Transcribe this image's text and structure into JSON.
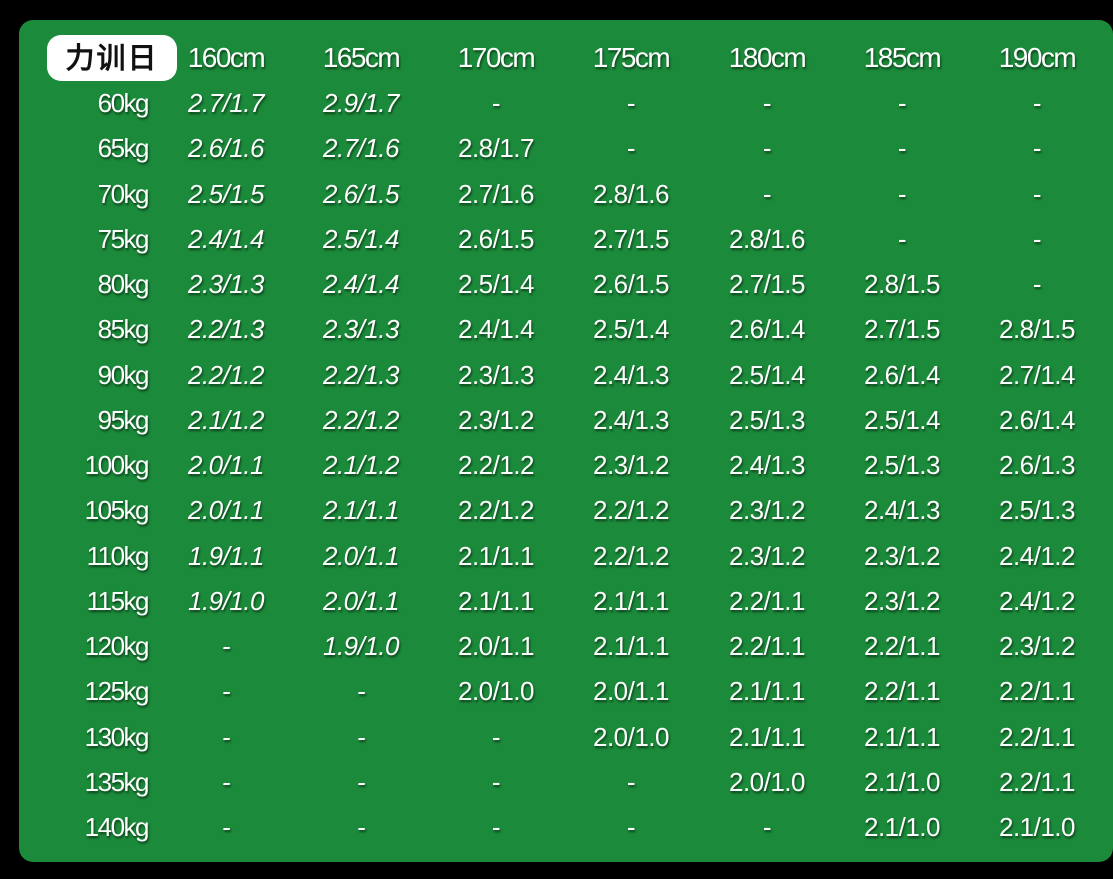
{
  "colors": {
    "background": "#000000",
    "panel": "#1b8a3a",
    "badge_bg": "#ffffff",
    "badge_text": "#111111",
    "text": "#ffffff"
  },
  "table": {
    "badge": "力训日",
    "columns": [
      "160cm",
      "165cm",
      "170cm",
      "175cm",
      "180cm",
      "185cm",
      "190cm"
    ],
    "rows": [
      {
        "label": "60kg",
        "cells": [
          "2.7/1.7",
          "2.9/1.7",
          "-",
          "-",
          "-",
          "-",
          "-"
        ]
      },
      {
        "label": "65kg",
        "cells": [
          "2.6/1.6",
          "2.7/1.6",
          "2.8/1.7",
          "-",
          "-",
          "-",
          "-"
        ]
      },
      {
        "label": "70kg",
        "cells": [
          "2.5/1.5",
          "2.6/1.5",
          "2.7/1.6",
          "2.8/1.6",
          "-",
          "-",
          "-"
        ]
      },
      {
        "label": "75kg",
        "cells": [
          "2.4/1.4",
          "2.5/1.4",
          "2.6/1.5",
          "2.7/1.5",
          "2.8/1.6",
          "-",
          "-"
        ]
      },
      {
        "label": "80kg",
        "cells": [
          "2.3/1.3",
          "2.4/1.4",
          "2.5/1.4",
          "2.6/1.5",
          "2.7/1.5",
          "2.8/1.5",
          "-"
        ]
      },
      {
        "label": "85kg",
        "cells": [
          "2.2/1.3",
          "2.3/1.3",
          "2.4/1.4",
          "2.5/1.4",
          "2.6/1.4",
          "2.7/1.5",
          "2.8/1.5"
        ]
      },
      {
        "label": "90kg",
        "cells": [
          "2.2/1.2",
          "2.2/1.3",
          "2.3/1.3",
          "2.4/1.3",
          "2.5/1.4",
          "2.6/1.4",
          "2.7/1.4"
        ]
      },
      {
        "label": "95kg",
        "cells": [
          "2.1/1.2",
          "2.2/1.2",
          "2.3/1.2",
          "2.4/1.3",
          "2.5/1.3",
          "2.5/1.4",
          "2.6/1.4"
        ]
      },
      {
        "label": "100kg",
        "cells": [
          "2.0/1.1",
          "2.1/1.2",
          "2.2/1.2",
          "2.3/1.2",
          "2.4/1.3",
          "2.5/1.3",
          "2.6/1.3"
        ]
      },
      {
        "label": "105kg",
        "cells": [
          "2.0/1.1",
          "2.1/1.1",
          "2.2/1.2",
          "2.2/1.2",
          "2.3/1.2",
          "2.4/1.3",
          "2.5/1.3"
        ]
      },
      {
        "label": "110kg",
        "cells": [
          "1.9/1.1",
          "2.0/1.1",
          "2.1/1.1",
          "2.2/1.2",
          "2.3/1.2",
          "2.3/1.2",
          "2.4/1.2"
        ]
      },
      {
        "label": "115kg",
        "cells": [
          "1.9/1.0",
          "2.0/1.1",
          "2.1/1.1",
          "2.1/1.1",
          "2.2/1.1",
          "2.3/1.2",
          "2.4/1.2"
        ]
      },
      {
        "label": "120kg",
        "cells": [
          "-",
          "1.9/1.0",
          "2.0/1.1",
          "2.1/1.1",
          "2.2/1.1",
          "2.2/1.1",
          "2.3/1.2"
        ]
      },
      {
        "label": "125kg",
        "cells": [
          "-",
          "-",
          "2.0/1.0",
          "2.0/1.1",
          "2.1/1.1",
          "2.2/1.1",
          "2.2/1.1"
        ]
      },
      {
        "label": "130kg",
        "cells": [
          "-",
          "-",
          "-",
          "2.0/1.0",
          "2.1/1.1",
          "2.1/1.1",
          "2.2/1.1"
        ]
      },
      {
        "label": "135kg",
        "cells": [
          "-",
          "-",
          "-",
          "-",
          "2.0/1.0",
          "2.1/1.0",
          "2.2/1.1"
        ]
      },
      {
        "label": "140kg",
        "cells": [
          "-",
          "-",
          "-",
          "-",
          "-",
          "2.1/1.0",
          "2.1/1.0"
        ]
      }
    ]
  }
}
